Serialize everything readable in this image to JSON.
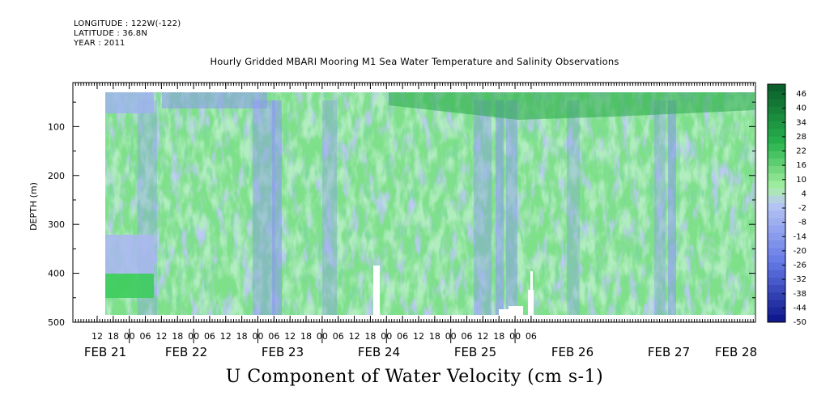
{
  "header": {
    "longitude": "LONGITUDE : 122W(-122)",
    "latitude": "LATITUDE : 36.8N",
    "year": "YEAR : 2011"
  },
  "chart_data": {
    "type": "heatmap",
    "title": "Hourly Gridded MBARI Mooring M1 Sea Water Temperature and Salinity Observations",
    "caption": "U Component of Water Velocity (cm s-1)",
    "ylabel": "DEPTH (m)",
    "ylim": [
      500,
      10
    ],
    "y_ticks": [
      100,
      200,
      300,
      400,
      500
    ],
    "x_hour_ticks": [
      "12",
      "18",
      "00",
      "06",
      "12",
      "18",
      "00",
      "06",
      "12",
      "18",
      "00",
      "06",
      "12",
      "18",
      "00",
      "06",
      "12",
      "18",
      "00",
      "06",
      "12",
      "18",
      "00",
      "06",
      "12",
      "18",
      "00",
      "06"
    ],
    "x_day_labels": [
      "FEB 21",
      "FEB 22",
      "FEB 23",
      "FEB 24",
      "FEB 25",
      "FEB 26",
      "FEB 27",
      "FEB 28"
    ],
    "colorbar": {
      "labels": [
        "46",
        "40",
        "34",
        "28",
        "22",
        "16",
        "10",
        "4",
        "-2",
        "-8",
        "-14",
        "-20",
        "-26",
        "-32",
        "-38",
        "-44",
        "-50"
      ],
      "range": [
        -50,
        46
      ]
    },
    "colors": {
      "positive_dark": "#0a5a2a",
      "positive_mid": "#28b44e",
      "positive_light": "#a8f0a4",
      "near_zero": "#b8c8f4",
      "negative_mid": "#6478e6",
      "negative_dark": "#0a1488"
    }
  }
}
